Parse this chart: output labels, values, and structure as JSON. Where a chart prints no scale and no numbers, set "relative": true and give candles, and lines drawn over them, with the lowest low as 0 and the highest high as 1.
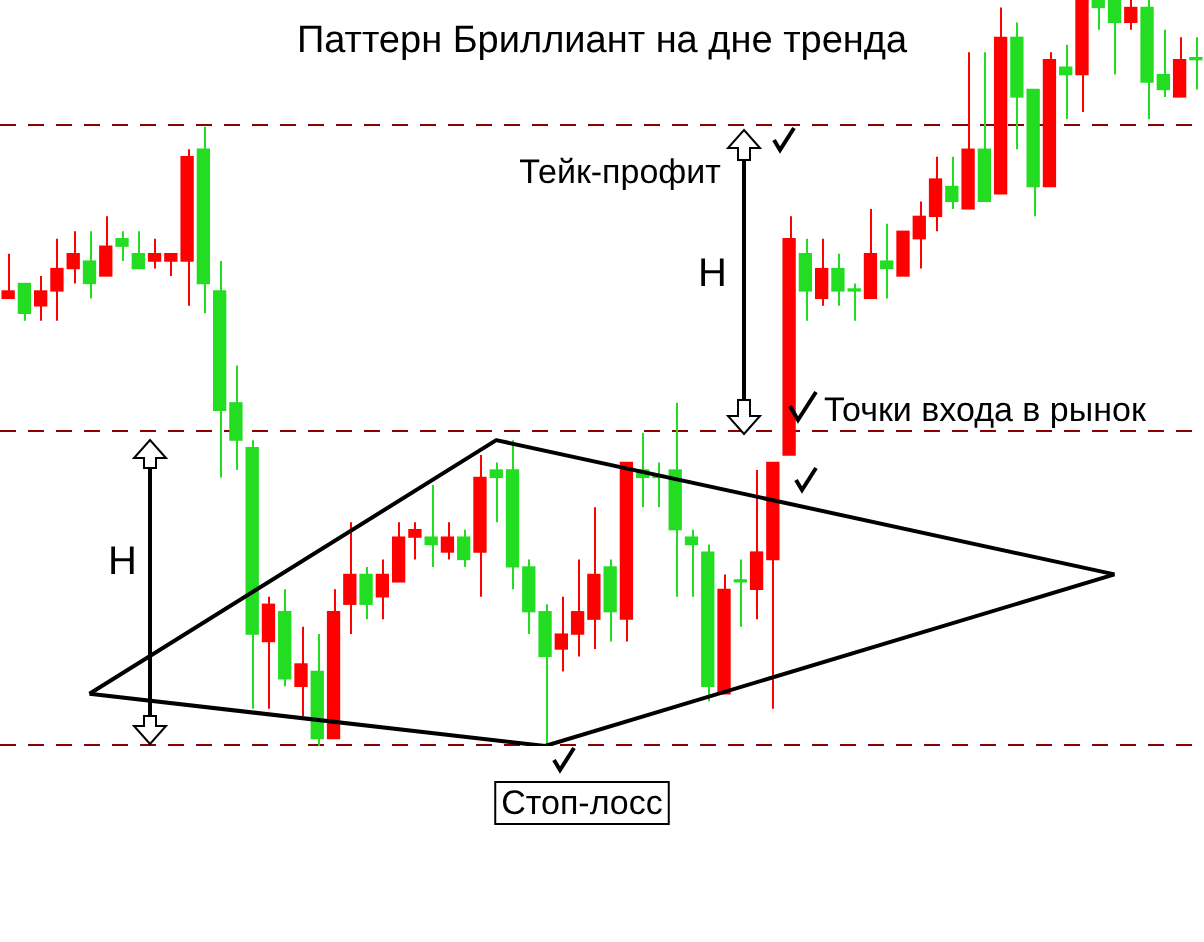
{
  "chart_data": {
    "type": "candlestick",
    "title": "Паттерн Бриллиант на дне тренда",
    "relative": true,
    "categories": [
      null,
      null,
      null,
      null,
      null,
      null,
      null,
      null,
      null,
      null,
      null,
      null,
      null,
      null,
      null,
      null,
      null,
      null,
      null,
      null,
      null,
      null,
      null,
      null,
      null,
      null,
      null,
      null,
      null,
      null,
      null,
      null,
      null,
      null,
      null,
      null,
      null,
      null,
      null,
      null,
      null,
      null,
      null,
      null,
      null,
      null,
      null,
      null,
      null,
      null,
      null,
      null,
      null,
      null,
      null,
      null,
      null,
      null,
      null,
      null,
      null,
      null,
      null,
      null,
      null,
      null,
      null,
      null,
      null,
      null,
      null,
      null,
      null,
      null
    ],
    "colors": [
      "#ff0000",
      "#22dd22",
      "#ff0000",
      "#ff0000",
      "#ff0000",
      "#22dd22",
      "#ff0000",
      "#22dd22",
      "#22dd22",
      "#ff0000",
      "#ff0000",
      "#ff0000",
      "#22dd22",
      "#22dd22",
      "#22dd22",
      "#22dd22",
      "#ff0000",
      "#22dd22",
      "#ff0000",
      "#22dd22",
      "#ff0000",
      "#ff0000",
      "#22dd22",
      "#ff0000",
      "#ff0000",
      "#ff0000",
      "#22dd22",
      "#ff0000",
      "#22dd22",
      "#ff0000",
      "#22dd22",
      "#22dd22",
      "#22dd22",
      "#22dd22",
      "#ff0000",
      "#ff0000",
      "#ff0000",
      "#22dd22",
      "#ff0000",
      "#22dd22",
      "#22dd22",
      "#22dd22",
      "#22dd22",
      "#22dd22",
      "#ff0000",
      "#22dd22",
      "#ff0000",
      "#ff0000",
      "#ff0000",
      "#22dd22",
      "#ff0000",
      "#22dd22",
      "#22dd22",
      "#ff0000",
      "#22dd22",
      "#ff0000",
      "#ff0000",
      "#ff0000",
      "#22dd22",
      "#ff0000",
      "#22dd22",
      "#ff0000",
      "#22dd22",
      "#22dd22",
      "#ff0000",
      "#22dd22",
      "#ff0000",
      "#22dd22",
      "#22dd22",
      "#ff0000",
      "#22dd22",
      "#22dd22",
      "#ff0000",
      "#22dd22"
    ],
    "ohlc": [
      [
        0.6,
        0.66,
        0.6,
        0.61
      ],
      [
        0.62,
        0.62,
        0.57,
        0.58
      ],
      [
        0.59,
        0.63,
        0.57,
        0.61
      ],
      [
        0.61,
        0.68,
        0.57,
        0.64
      ],
      [
        0.64,
        0.69,
        0.62,
        0.66
      ],
      [
        0.65,
        0.69,
        0.6,
        0.62
      ],
      [
        0.63,
        0.71,
        0.63,
        0.67
      ],
      [
        0.68,
        0.69,
        0.65,
        0.67
      ],
      [
        0.66,
        0.69,
        0.64,
        0.64
      ],
      [
        0.65,
        0.68,
        0.64,
        0.66
      ],
      [
        0.65,
        0.66,
        0.63,
        0.66
      ],
      [
        0.65,
        0.8,
        0.59,
        0.79
      ],
      [
        0.8,
        0.83,
        0.58,
        0.62
      ],
      [
        0.61,
        0.65,
        0.36,
        0.45
      ],
      [
        0.46,
        0.51,
        0.37,
        0.41
      ],
      [
        0.4,
        0.41,
        0.05,
        0.15
      ],
      [
        0.14,
        0.2,
        0.05,
        0.19
      ],
      [
        0.18,
        0.21,
        0.08,
        0.09
      ],
      [
        0.08,
        0.16,
        0.04,
        0.11
      ],
      [
        0.1,
        0.15,
        0,
        0.01
      ],
      [
        0.01,
        0.21,
        0.01,
        0.18
      ],
      [
        0.19,
        0.3,
        0.15,
        0.23
      ],
      [
        0.23,
        0.24,
        0.17,
        0.19
      ],
      [
        0.2,
        0.25,
        0.17,
        0.23
      ],
      [
        0.22,
        0.3,
        0.22,
        0.28
      ],
      [
        0.28,
        0.3,
        0.25,
        0.29
      ],
      [
        0.28,
        0.35,
        0.24,
        0.27
      ],
      [
        0.26,
        0.3,
        0.25,
        0.28
      ],
      [
        0.28,
        0.29,
        0.24,
        0.25
      ],
      [
        0.26,
        0.39,
        0.2,
        0.36
      ],
      [
        0.37,
        0.38,
        0.3,
        0.36
      ],
      [
        0.37,
        0.41,
        0.21,
        0.24
      ],
      [
        0.24,
        0.25,
        0.15,
        0.18
      ],
      [
        0.18,
        0.19,
        0,
        0.12
      ],
      [
        0.13,
        0.2,
        0.1,
        0.15
      ],
      [
        0.15,
        0.25,
        0.12,
        0.18
      ],
      [
        0.17,
        0.32,
        0.13,
        0.23
      ],
      [
        0.24,
        0.25,
        0.14,
        0.18
      ],
      [
        0.17,
        0.38,
        0.14,
        0.38
      ],
      [
        0.37,
        0.42,
        0.32,
        0.36
      ],
      [
        0.36,
        0.38,
        0.32,
        0.36
      ],
      [
        0.37,
        0.46,
        0.2,
        0.29
      ],
      [
        0.28,
        0.29,
        0.2,
        0.27
      ],
      [
        0.26,
        0.27,
        0.06,
        0.08
      ],
      [
        0.07,
        0.23,
        0.07,
        0.21
      ],
      [
        0.22,
        0.25,
        0.16,
        0.22
      ],
      [
        0.21,
        0.37,
        0.17,
        0.26
      ],
      [
        0.25,
        0.38,
        0.05,
        0.38
      ],
      [
        0.39,
        0.71,
        0.39,
        0.68
      ],
      [
        0.66,
        0.68,
        0.57,
        0.61
      ],
      [
        0.6,
        0.68,
        0.59,
        0.64
      ],
      [
        0.64,
        0.66,
        0.59,
        0.61
      ],
      [
        0.61,
        0.62,
        0.57,
        0.61
      ],
      [
        0.6,
        0.72,
        0.6,
        0.66
      ],
      [
        0.65,
        0.7,
        0.6,
        0.64
      ],
      [
        0.63,
        0.69,
        0.63,
        0.69
      ],
      [
        0.68,
        0.73,
        0.64,
        0.71
      ],
      [
        0.71,
        0.79,
        0.69,
        0.76
      ],
      [
        0.75,
        0.79,
        0.72,
        0.73
      ],
      [
        0.72,
        0.93,
        0.72,
        0.8
      ],
      [
        0.8,
        0.93,
        0.73,
        0.73
      ],
      [
        0.74,
        0.99,
        0.74,
        0.95
      ],
      [
        0.95,
        0.97,
        0.8,
        0.87
      ],
      [
        0.88,
        0.88,
        0.71,
        0.75
      ],
      [
        0.75,
        0.93,
        0.75,
        0.92
      ],
      [
        0.91,
        0.94,
        0.84,
        0.9
      ],
      [
        0.9,
        1,
        0.85,
        1
      ],
      [
        1,
        1,
        0.96,
        0.99
      ],
      [
        1,
        1,
        0.9,
        0.97
      ],
      [
        0.97,
        1,
        0.96,
        0.99
      ],
      [
        0.99,
        1,
        0.84,
        0.89
      ],
      [
        0.9,
        0.96,
        0.87,
        0.88
      ],
      [
        0.87,
        0.95,
        0.87,
        0.92
      ],
      [
        0.92,
        0.95,
        0.88,
        0.92
      ]
    ],
    "ref_lines": [
      {
        "axis": "y",
        "value": 0.83,
        "label": "Тейк-профит",
        "color": "#8b0000",
        "line_style": "dashed"
      },
      {
        "axis": "y",
        "value": 0.42,
        "label": "Точки входа в рынок",
        "color": "#8b0000",
        "line_style": "dashed"
      },
      {
        "axis": "y",
        "value": 0,
        "label": "Стоп-лосс",
        "color": "#8b0000",
        "line_style": "dashed"
      }
    ],
    "annotations": [
      "H",
      "H"
    ],
    "series": [
      {
        "type": "line",
        "color": "#000000",
        "values": [
          null,
          null,
          null,
          null,
          null,
          0.07,
          null,
          null,
          null,
          null,
          null,
          null,
          null,
          null,
          null,
          null,
          null,
          null,
          null,
          null,
          null,
          null,
          null,
          null,
          null,
          null,
          null,
          null,
          null,
          null,
          0.41,
          null,
          null,
          null,
          null,
          null,
          null,
          null,
          null,
          null,
          null,
          null,
          null,
          null,
          null,
          null,
          null,
          null,
          null,
          null,
          null,
          null,
          null,
          null,
          null,
          null,
          null,
          null,
          null,
          null,
          null,
          null,
          null,
          null,
          null,
          null,
          null,
          null,
          0.23,
          null,
          null,
          null,
          null,
          null
        ]
      },
      {
        "type": "line",
        "color": "#000000",
        "values": [
          null,
          null,
          null,
          null,
          null,
          0.07,
          null,
          null,
          null,
          null,
          null,
          null,
          null,
          null,
          null,
          null,
          null,
          null,
          null,
          null,
          null,
          null,
          null,
          null,
          null,
          null,
          null,
          null,
          null,
          null,
          null,
          null,
          null,
          0,
          null,
          null,
          null,
          null,
          null,
          null,
          null,
          null,
          null,
          null,
          null,
          null,
          null,
          null,
          null,
          null,
          null,
          null,
          null,
          null,
          null,
          null,
          null,
          null,
          null,
          null,
          null,
          null,
          null,
          null,
          null,
          null,
          null,
          null,
          0.23,
          null,
          null,
          null,
          null,
          null
        ]
      }
    ],
    "legend": false
  }
}
